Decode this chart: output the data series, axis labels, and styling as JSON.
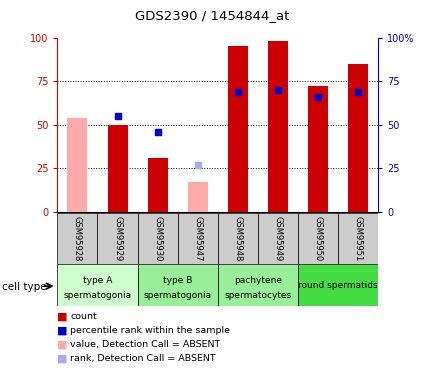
{
  "title": "GDS2390 / 1454844_at",
  "samples": [
    "GSM95928",
    "GSM95929",
    "GSM95930",
    "GSM95947",
    "GSM95948",
    "GSM95949",
    "GSM95950",
    "GSM95951"
  ],
  "count_values": [
    null,
    50,
    31,
    null,
    95,
    98,
    72,
    85
  ],
  "percentile_values": [
    null,
    55,
    46,
    null,
    69,
    70,
    66,
    69
  ],
  "absent_count_values": [
    54,
    null,
    null,
    17,
    null,
    null,
    null,
    null
  ],
  "absent_rank_values": [
    null,
    null,
    null,
    27,
    null,
    null,
    null,
    null
  ],
  "group_colors": [
    "#ccffcc",
    "#99ee99",
    "#99ee99",
    "#44dd44"
  ],
  "group_labels_line1": [
    "type A",
    "type B",
    "pachytene",
    "round spermatids"
  ],
  "group_labels_line2": [
    "spermatogonia",
    "spermatogonia",
    "spermatocytes",
    ""
  ],
  "group_ranges": [
    [
      0,
      1
    ],
    [
      2,
      3
    ],
    [
      4,
      5
    ],
    [
      6,
      7
    ]
  ],
  "red_color": "#cc0000",
  "blue_color": "#0000cc",
  "pink_color": "#ffaaaa",
  "light_blue_color": "#aaaaee",
  "bg_label": "#cccccc",
  "ymin": 0,
  "ymax": 100,
  "yticks": [
    0,
    25,
    50,
    75,
    100
  ],
  "ytick_labels_left": [
    "0",
    "25",
    "50",
    "75",
    "100"
  ],
  "ytick_labels_right": [
    "0",
    "25",
    "50",
    "75",
    "100%"
  ],
  "legend_items": [
    [
      "#cc0000",
      "count"
    ],
    [
      "#0000cc",
      "percentile rank within the sample"
    ],
    [
      "#ffaaaa",
      "value, Detection Call = ABSENT"
    ],
    [
      "#aaaaee",
      "rank, Detection Call = ABSENT"
    ]
  ]
}
